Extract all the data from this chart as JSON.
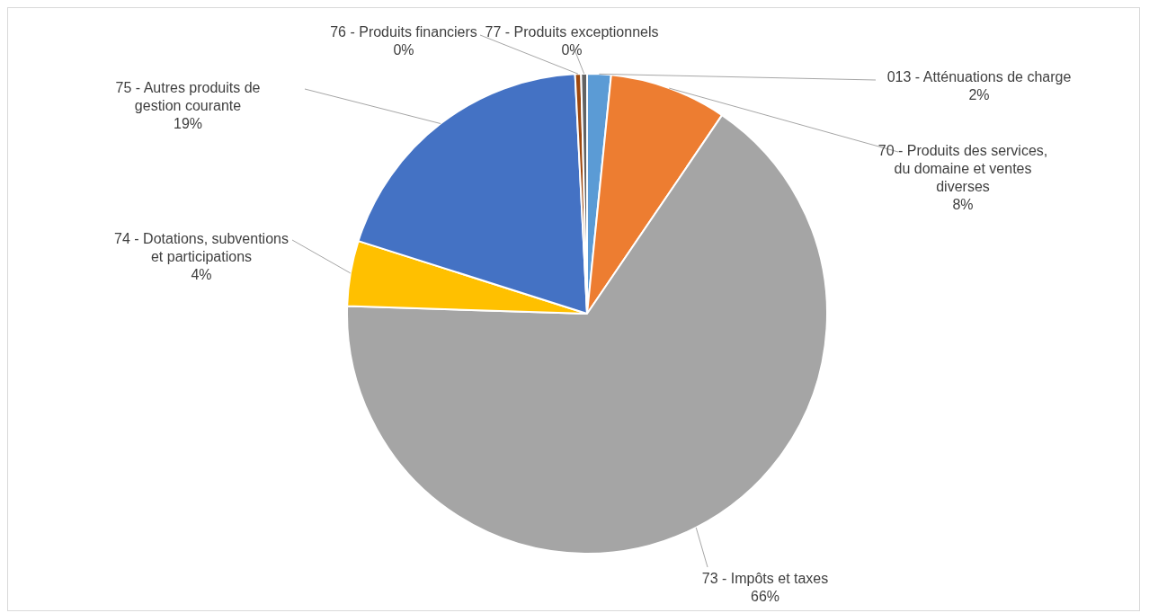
{
  "chart_data": {
    "type": "pie",
    "categories": [
      "013 - Atténuations de charge",
      "70 - Produits des services, du domaine et ventes diverses",
      "73 - Impôts et taxes",
      "74 - Dotations, subventions et participations",
      "75 - Autres produits de gestion courante",
      "76 - Produits financiers",
      "77 - Produits exceptionnels"
    ],
    "values": [
      1.6,
      7.9,
      66.0,
      4.4,
      19.3,
      0.4,
      0.4
    ],
    "value_labels": [
      "2%",
      "8%",
      "66%",
      "4%",
      "19%",
      "0%",
      "0%"
    ],
    "colors": [
      "#5b9bd5",
      "#ed7d31",
      "#a5a5a5",
      "#ffc000",
      "#4472c4",
      "#9e480e",
      "#636363"
    ],
    "legend": false
  }
}
